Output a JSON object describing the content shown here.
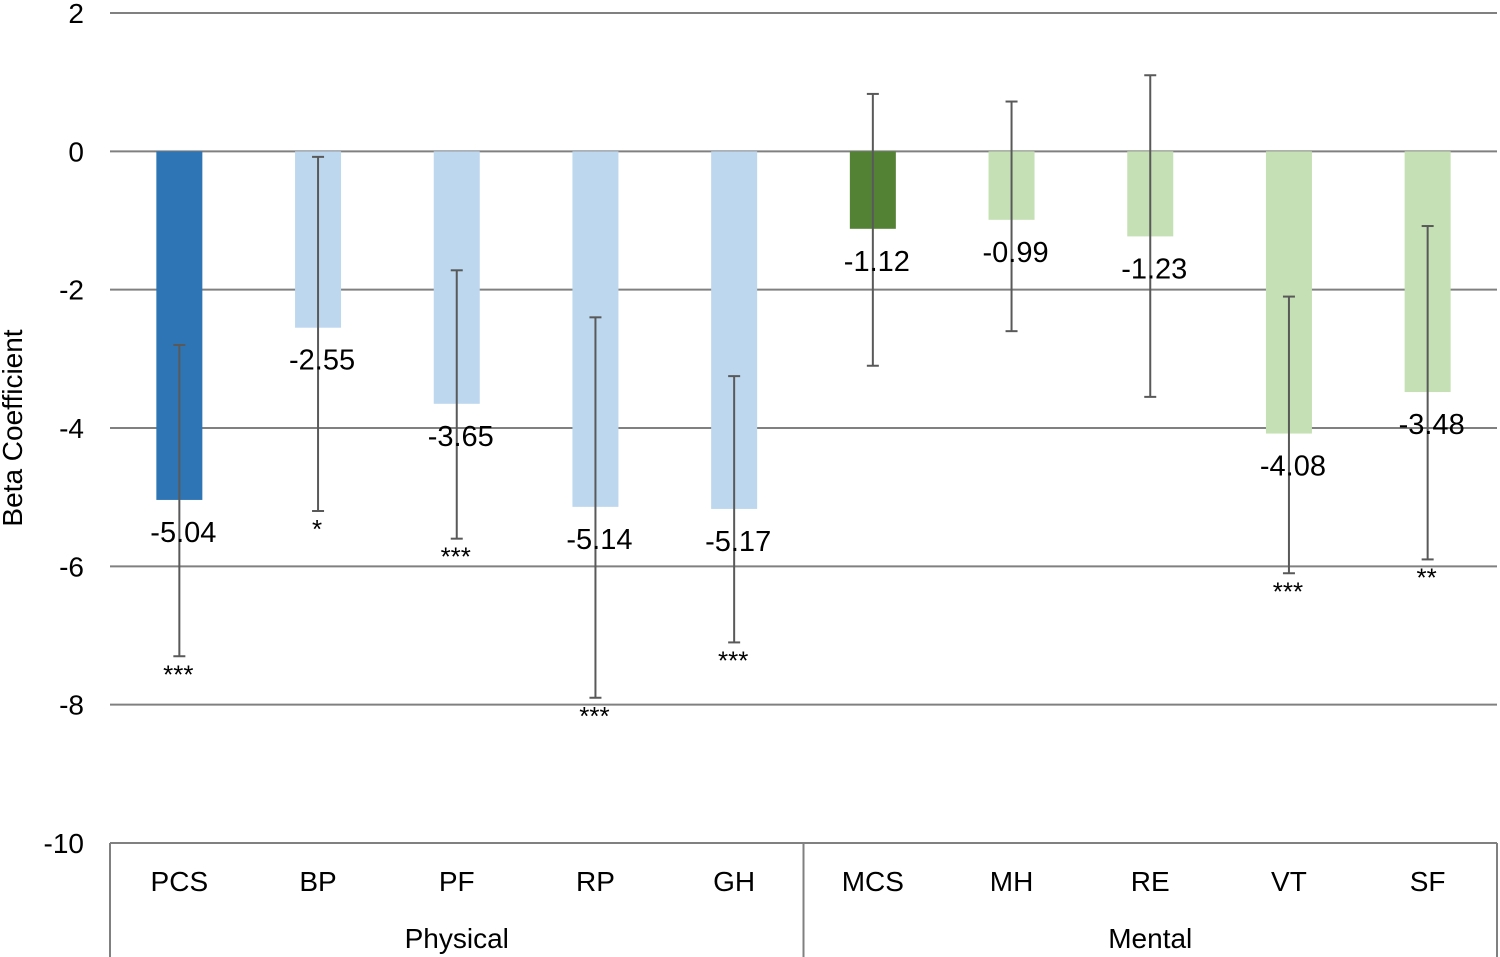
{
  "chart_data": {
    "type": "bar",
    "ylabel": "Beta Coefficient",
    "ylim": [
      -10,
      2
    ],
    "yticks": [
      2,
      0,
      -2,
      -4,
      -6,
      -8,
      -10
    ],
    "yticks_labels": [
      "2",
      "0",
      "-2",
      "-4",
      "-6",
      "-8",
      "-10"
    ],
    "grid": true,
    "categories": [
      "PCS",
      "BP",
      "PF",
      "RP",
      "GH",
      "MCS",
      "MH",
      "RE",
      "VT",
      "SF"
    ],
    "groups": [
      {
        "name": "Physical",
        "categories": [
          "PCS",
          "BP",
          "PF",
          "RP",
          "GH"
        ]
      },
      {
        "name": "Mental",
        "categories": [
          "MCS",
          "MH",
          "RE",
          "VT",
          "SF"
        ]
      }
    ],
    "values": [
      -5.04,
      -2.55,
      -3.65,
      -5.14,
      -5.17,
      -1.12,
      -0.99,
      -1.23,
      -4.08,
      -3.48
    ],
    "value_labels": [
      "-5.04",
      "-2.55",
      "-3.65",
      "-5.14",
      "-5.17",
      "-1.12",
      "-0.99",
      "-1.23",
      "-4.08",
      "-3.48"
    ],
    "error_low": [
      -7.3,
      -5.2,
      -5.6,
      -7.9,
      -7.1,
      -3.1,
      -2.6,
      -3.55,
      -6.1,
      -5.9
    ],
    "error_high": [
      -2.8,
      -0.08,
      -1.72,
      -2.4,
      -3.25,
      0.83,
      0.72,
      1.1,
      -2.1,
      -1.08
    ],
    "significance": [
      "***",
      "*",
      "***",
      "***",
      "***",
      "",
      "",
      "",
      "***",
      "**"
    ],
    "colors": [
      "#2E75B6",
      "#BDD7EE",
      "#BDD7EE",
      "#BDD7EE",
      "#BDD7EE",
      "#548235",
      "#C5E0B4",
      "#C5E0B4",
      "#C5E0B4",
      "#C5E0B4"
    ],
    "gridline_color": "#808080",
    "errorbar_color": "#595959"
  }
}
